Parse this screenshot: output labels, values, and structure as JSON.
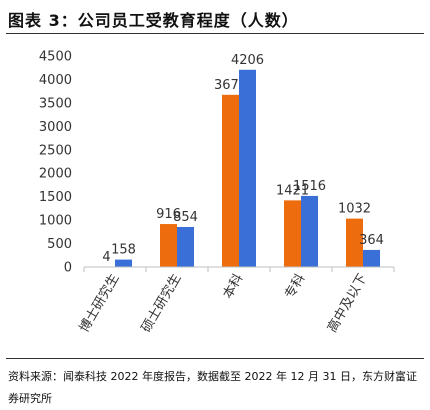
{
  "title": "图表 3：公司员工受教育程度（人数）",
  "source": "资料来源：闻泰科技 2022 年度报告，数据截至 2022 年 12 月 31 日，东方财富证券研究所",
  "colors": {
    "series_a": "#ED6D0E",
    "series_b": "#3A6FD8"
  },
  "chart_data": {
    "type": "bar",
    "categories": [
      "博士研究生",
      "硕士研究生",
      "本科",
      "专科",
      "高中及以下"
    ],
    "series": [
      {
        "values": [
          4,
          916,
          3672,
          1421,
          1032
        ]
      },
      {
        "values": [
          158,
          854,
          4206,
          1516,
          364
        ]
      }
    ],
    "ylim": [
      0,
      4500
    ],
    "yticks": [
      "0",
      "500",
      "1000",
      "1500",
      "2000",
      "2500",
      "3000",
      "3500",
      "4000",
      "4500"
    ],
    "grid": false,
    "legend": "none",
    "title": "",
    "xlabel": "",
    "ylabel": ""
  }
}
